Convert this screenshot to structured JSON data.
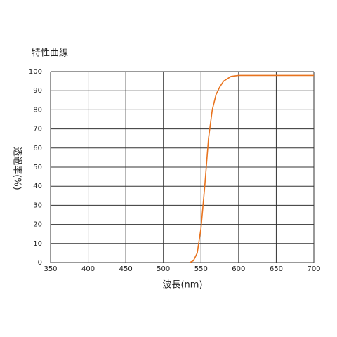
{
  "chart_data": {
    "type": "line",
    "title": "特性曲線",
    "x_label": "波長(nm)",
    "y_label": "透過率(%)",
    "x": [
      535,
      540,
      545,
      550,
      555,
      560,
      565,
      570,
      575,
      580,
      590,
      600,
      650,
      700
    ],
    "series": [
      {
        "name": "透過率",
        "color": "#e8731e",
        "values": [
          0,
          1,
          5,
          18,
          40,
          65,
          80,
          88,
          92,
          95,
          97.5,
          98,
          98,
          98
        ]
      }
    ],
    "xlim": [
      350,
      700
    ],
    "xticks": [
      350,
      400,
      450,
      500,
      550,
      600,
      650,
      700
    ],
    "ylim": [
      0,
      100
    ],
    "yticks": [
      0,
      10,
      20,
      30,
      40,
      50,
      60,
      70,
      80,
      90,
      100
    ],
    "grid": true
  }
}
